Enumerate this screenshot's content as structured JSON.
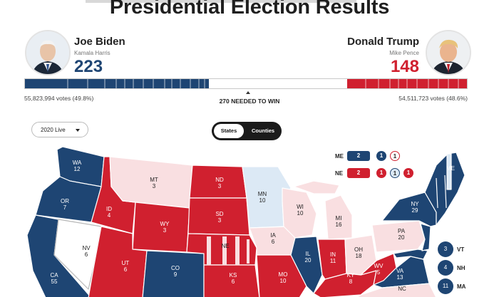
{
  "page": {
    "title": "Presidential Election Results"
  },
  "colors": {
    "dem": "#1e4573",
    "rep": "#d0202f",
    "lean_dem": "#dce9f5",
    "lean_rep": "#f9dfe1",
    "tossup": "#ffffff"
  },
  "candidates": {
    "dem": {
      "name": "Joe Biden",
      "running_mate": "Kamala Harris",
      "electoral_votes": "223",
      "popular_votes": "55,823,994 votes (49.8%)"
    },
    "rep": {
      "name": "Donald Trump",
      "running_mate": "Mike Pence",
      "electoral_votes": "148",
      "popular_votes": "54,511,723 votes (48.6%)"
    }
  },
  "needed_to_win": "270 NEEDED TO WIN",
  "controls": {
    "year_select": "2020 Live",
    "view_toggle": {
      "states": "States",
      "counties": "Counties",
      "active": "States"
    }
  },
  "district_states": [
    {
      "label": "ME",
      "total": "2",
      "districts": [
        "1",
        "1"
      ]
    },
    {
      "label": "NE",
      "total": "2",
      "districts": [
        "1",
        "1",
        "1"
      ]
    }
  ],
  "small_states": [
    {
      "ev": "3",
      "label": "VT"
    },
    {
      "ev": "4",
      "label": "NH"
    },
    {
      "ev": "11",
      "label": "MA"
    }
  ],
  "states": [
    {
      "abbr": "WA",
      "ev": "12"
    },
    {
      "abbr": "OR",
      "ev": "7"
    },
    {
      "abbr": "CA",
      "ev": "55"
    },
    {
      "abbr": "NV",
      "ev": "6"
    },
    {
      "abbr": "ID",
      "ev": "4"
    },
    {
      "abbr": "MT",
      "ev": "3"
    },
    {
      "abbr": "WY",
      "ev": "3"
    },
    {
      "abbr": "UT",
      "ev": "6"
    },
    {
      "abbr": "CO",
      "ev": "9"
    },
    {
      "abbr": "ND",
      "ev": "3"
    },
    {
      "abbr": "SD",
      "ev": "3"
    },
    {
      "abbr": "NE",
      "ev": ""
    },
    {
      "abbr": "KS",
      "ev": "6"
    },
    {
      "abbr": "MN",
      "ev": "10"
    },
    {
      "abbr": "IA",
      "ev": "6"
    },
    {
      "abbr": "MO",
      "ev": "10"
    },
    {
      "abbr": "WI",
      "ev": "10"
    },
    {
      "abbr": "IL",
      "ev": "20"
    },
    {
      "abbr": "MI",
      "ev": "16"
    },
    {
      "abbr": "IN",
      "ev": "11"
    },
    {
      "abbr": "OH",
      "ev": "18"
    },
    {
      "abbr": "KY",
      "ev": "8"
    },
    {
      "abbr": "WV",
      "ev": "5"
    },
    {
      "abbr": "PA",
      "ev": "20"
    },
    {
      "abbr": "NY",
      "ev": "29"
    },
    {
      "abbr": "VA",
      "ev": "13"
    },
    {
      "abbr": "NC",
      "ev": ""
    },
    {
      "abbr": "ME",
      "ev": ""
    }
  ]
}
